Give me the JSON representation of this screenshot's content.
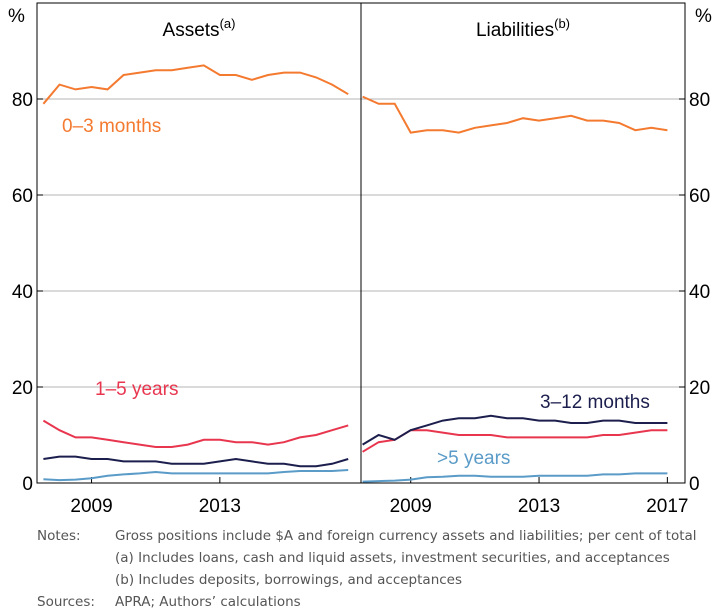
{
  "chart_data": [
    {
      "type": "line",
      "title": "Assets",
      "title_superscript": "(a)",
      "ylabel": "%",
      "ytick_side": "left",
      "xlim": [
        2007.3,
        2017.4
      ],
      "xticks": [
        2009,
        2013
      ],
      "ylim": [
        0,
        100
      ],
      "yticks": [
        0,
        20,
        40,
        60,
        80
      ],
      "grid": true,
      "x": [
        2007.5,
        2008.0,
        2008.5,
        2009.0,
        2009.5,
        2010.0,
        2010.5,
        2011.0,
        2011.5,
        2012.0,
        2012.5,
        2013.0,
        2013.5,
        2014.0,
        2014.5,
        2015.0,
        2015.5,
        2016.0,
        2016.5,
        2017.0
      ],
      "series": [
        {
          "name": "0–3 months",
          "color": "#f47a30",
          "values": [
            79,
            83,
            82,
            82.5,
            82,
            85,
            85.5,
            86,
            86,
            86.5,
            87,
            85,
            85,
            84,
            85,
            85.5,
            85.5,
            84.5,
            83,
            81
          ]
        },
        {
          "name": "1–5 years",
          "color": "#e8364f",
          "values": [
            13,
            11,
            9.5,
            9.5,
            9,
            8.5,
            8,
            7.5,
            7.5,
            8,
            9,
            9,
            8.5,
            8.5,
            8,
            8.5,
            9.5,
            10,
            11,
            12
          ]
        },
        {
          "color": "#1c1f4d",
          "values": [
            5,
            5.5,
            5.5,
            5,
            5,
            4.5,
            4.5,
            4.5,
            4,
            4,
            4,
            4.5,
            5,
            4.5,
            4,
            4,
            3.5,
            3.5,
            4,
            5
          ]
        },
        {
          "color": "#5a9bc8",
          "values": [
            0.8,
            0.6,
            0.7,
            1,
            1.5,
            1.8,
            2,
            2.3,
            2,
            2,
            2,
            2,
            2,
            2,
            2,
            2.3,
            2.5,
            2.5,
            2.5,
            2.7
          ]
        }
      ]
    },
    {
      "type": "line",
      "title": "Liabilities",
      "title_superscript": "(b)",
      "ylabel": "%",
      "ytick_side": "right",
      "xlim": [
        2007.45,
        2017.55
      ],
      "xticks": [
        2009,
        2013,
        2017
      ],
      "ylim": [
        0,
        100
      ],
      "yticks": [
        0,
        20,
        40,
        60,
        80
      ],
      "grid": true,
      "x": [
        2007.5,
        2008.0,
        2008.5,
        2009.0,
        2009.5,
        2010.0,
        2010.5,
        2011.0,
        2011.5,
        2012.0,
        2012.5,
        2013.0,
        2013.5,
        2014.0,
        2014.5,
        2015.0,
        2015.5,
        2016.0,
        2016.5,
        2017.0
      ],
      "series": [
        {
          "color": "#f47a30",
          "values": [
            80.5,
            79,
            79,
            73,
            73.5,
            73.5,
            73,
            74,
            74.5,
            75,
            76,
            75.5,
            76,
            76.5,
            75.5,
            75.5,
            75,
            73.5,
            74,
            73.5
          ]
        },
        {
          "color": "#e8364f",
          "values": [
            6.5,
            8.5,
            9,
            11,
            11,
            10.5,
            10,
            10,
            10,
            9.5,
            9.5,
            9.5,
            9.5,
            9.5,
            9.5,
            10,
            10,
            10.5,
            11,
            11
          ]
        },
        {
          "name": "3–12 months",
          "color": "#1c1f4d",
          "values": [
            8,
            10,
            9,
            11,
            12,
            13,
            13.5,
            13.5,
            14,
            13.5,
            13.5,
            13,
            13,
            12.5,
            12.5,
            13,
            13,
            12.5,
            12.5,
            12.5
          ]
        },
        {
          "name": ">5 years",
          "color": "#5a9bc8",
          "values": [
            0.3,
            0.4,
            0.5,
            0.7,
            1.2,
            1.3,
            1.5,
            1.5,
            1.3,
            1.3,
            1.3,
            1.5,
            1.5,
            1.5,
            1.5,
            1.8,
            1.8,
            2,
            2,
            2
          ]
        }
      ]
    }
  ],
  "notes": {
    "label": "Notes:",
    "lines": [
      "Gross positions include $A and foreign currency assets and liabilities; per cent of total",
      "(a) Includes loans, cash and liquid assets, investment securities, and acceptances",
      "(b) Includes deposits, borrowings, and acceptances"
    ]
  },
  "sources": {
    "label": "Sources:",
    "text": "APRA; Authors’ calculations"
  }
}
